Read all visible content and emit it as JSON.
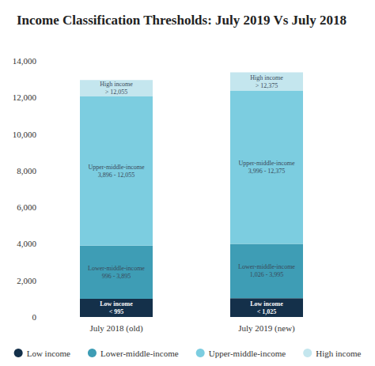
{
  "chart_data": {
    "type": "bar",
    "title": "Income Classification Thresholds: July 2019 Vs July 2018",
    "categories": [
      "July 2018 (old)",
      "July 2019 (new)"
    ],
    "stacked": true,
    "grid": false,
    "legend": "bottom",
    "ylim": [
      0,
      14000
    ],
    "yticks": [
      0,
      {
        "value": 2000,
        "label": "2,000"
      },
      {
        "value": 4000,
        "label": "4,000"
      },
      {
        "value": 6000,
        "label": "6,000"
      },
      {
        "value": 8000,
        "label": "8,000"
      },
      {
        "value": 10000,
        "label": "10,000"
      },
      {
        "value": 12000,
        "label": "12,000"
      },
      {
        "value": 14000,
        "label": "14,000"
      }
    ],
    "series": [
      {
        "name": "Low income",
        "color": "#14304a",
        "values": [
          995,
          1025
        ],
        "labels": [
          [
            "Low income",
            "< 995"
          ],
          [
            "Low income",
            "< 1,025"
          ]
        ]
      },
      {
        "name": "Lower-middle-income",
        "color": "#3e9db5",
        "values": [
          2900,
          2970
        ],
        "labels": [
          [
            "Lower-middle-income",
            "996 - 3,895"
          ],
          [
            "Lower-middle-income",
            "1,026 - 3,995"
          ]
        ]
      },
      {
        "name": "Upper-middle-income",
        "color": "#7ccde0",
        "values": [
          8160,
          8380
        ],
        "labels": [
          [
            "Upper-middle-income",
            "3,896 - 12,055"
          ],
          [
            "Upper-middle-income",
            "3,996 - 12,375"
          ]
        ]
      },
      {
        "name": "High income",
        "color": "#c4e6ee",
        "values": [
          900,
          1000
        ],
        "labels": [
          [
            "High income",
            "> 12,055"
          ],
          [
            "High income",
            "> 12,375"
          ]
        ]
      }
    ]
  }
}
